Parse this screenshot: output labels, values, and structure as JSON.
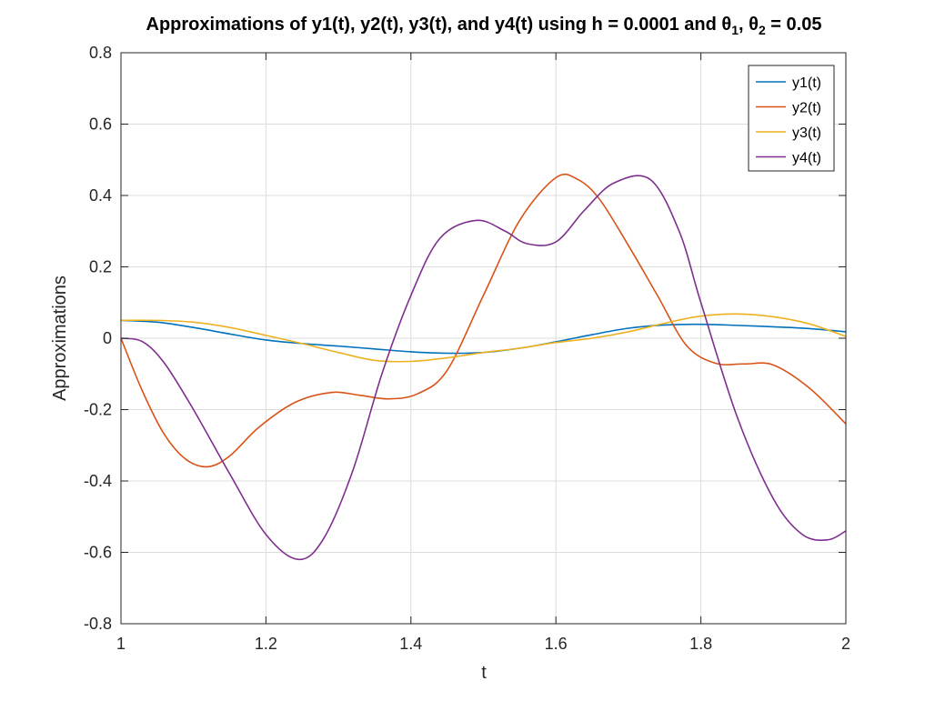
{
  "chart_data": {
    "type": "line",
    "title": "Approximations of y1(t), y2(t), y3(t), and y4(t) using h = 0.0001 and θ",
    "title_sub1": "1",
    "title_mid": ", θ",
    "title_sub2": "2",
    "title_end": " = 0.05",
    "xlabel": "t",
    "ylabel": "Approximations",
    "xlim": [
      1,
      2
    ],
    "ylim": [
      -0.8,
      0.8
    ],
    "xticks": [
      1,
      1.2,
      1.4,
      1.6,
      1.8,
      2
    ],
    "xtick_labels": [
      "1",
      "1.2",
      "1.4",
      "1.6",
      "1.8",
      "2"
    ],
    "yticks": [
      -0.8,
      -0.6,
      -0.4,
      -0.2,
      0,
      0.2,
      0.4,
      0.6,
      0.8
    ],
    "ytick_labels": [
      "-0.8",
      "-0.6",
      "-0.4",
      "-0.2",
      "0",
      "0.2",
      "0.4",
      "0.6",
      "0.8"
    ],
    "grid": true,
    "legend_position": "top-right",
    "series": [
      {
        "name": "y1(t)",
        "color": "#0072BD",
        "x": [
          1.0,
          1.05,
          1.1,
          1.15,
          1.2,
          1.25,
          1.3,
          1.35,
          1.4,
          1.45,
          1.5,
          1.55,
          1.6,
          1.65,
          1.7,
          1.75,
          1.8,
          1.85,
          1.9,
          1.95,
          2.0
        ],
        "y": [
          0.05,
          0.045,
          0.03,
          0.012,
          -0.005,
          -0.015,
          -0.022,
          -0.03,
          -0.038,
          -0.042,
          -0.04,
          -0.028,
          -0.01,
          0.01,
          0.028,
          0.037,
          0.039,
          0.036,
          0.032,
          0.027,
          0.018
        ]
      },
      {
        "name": "y2(t)",
        "color": "#D95319",
        "x": [
          1.0,
          1.03,
          1.06,
          1.09,
          1.12,
          1.15,
          1.19,
          1.24,
          1.29,
          1.33,
          1.37,
          1.41,
          1.45,
          1.5,
          1.55,
          1.6,
          1.63,
          1.66,
          1.7,
          1.74,
          1.78,
          1.82,
          1.86,
          1.9,
          1.95,
          2.0
        ],
        "y": [
          0.0,
          -0.15,
          -0.27,
          -0.34,
          -0.36,
          -0.33,
          -0.25,
          -0.18,
          -0.152,
          -0.16,
          -0.17,
          -0.155,
          -0.09,
          0.12,
          0.33,
          0.45,
          0.445,
          0.39,
          0.26,
          0.12,
          -0.02,
          -0.07,
          -0.072,
          -0.075,
          -0.14,
          -0.24
        ]
      },
      {
        "name": "y3(t)",
        "color": "#EDB120",
        "x": [
          1.0,
          1.05,
          1.1,
          1.15,
          1.2,
          1.25,
          1.3,
          1.35,
          1.4,
          1.45,
          1.5,
          1.55,
          1.6,
          1.65,
          1.7,
          1.75,
          1.8,
          1.85,
          1.9,
          1.95,
          2.0
        ],
        "y": [
          0.05,
          0.05,
          0.045,
          0.03,
          0.008,
          -0.015,
          -0.04,
          -0.062,
          -0.065,
          -0.055,
          -0.04,
          -0.028,
          -0.012,
          0.0,
          0.018,
          0.042,
          0.062,
          0.068,
          0.06,
          0.04,
          0.005
        ]
      },
      {
        "name": "y4(t)",
        "color": "#7E2F8E",
        "x": [
          1.0,
          1.03,
          1.06,
          1.1,
          1.15,
          1.2,
          1.245,
          1.28,
          1.32,
          1.36,
          1.4,
          1.44,
          1.49,
          1.53,
          1.56,
          1.6,
          1.64,
          1.68,
          1.73,
          1.77,
          1.8,
          1.85,
          1.9,
          1.94,
          1.975,
          2.0
        ],
        "y": [
          0.0,
          -0.01,
          -0.07,
          -0.2,
          -0.38,
          -0.55,
          -0.62,
          -0.56,
          -0.37,
          -0.1,
          0.12,
          0.28,
          0.33,
          0.3,
          0.265,
          0.27,
          0.36,
          0.435,
          0.445,
          0.3,
          0.1,
          -0.22,
          -0.45,
          -0.55,
          -0.565,
          -0.54
        ]
      }
    ]
  }
}
